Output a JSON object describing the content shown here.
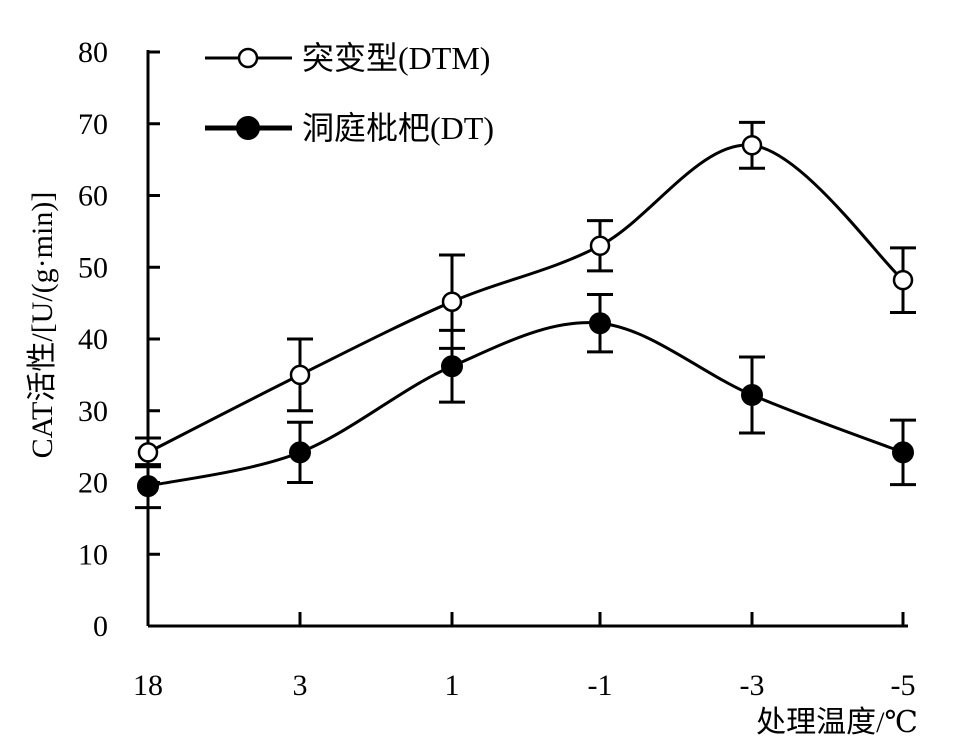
{
  "chart_data": {
    "type": "line",
    "xlabel": "处理温度/℃",
    "ylabel": "CAT活性/[U/(g·min)]",
    "categories": [
      "18",
      "3",
      "1",
      "-1",
      "-3",
      "-5"
    ],
    "ylim": [
      0,
      80
    ],
    "yticks": [
      0,
      10,
      20,
      30,
      40,
      50,
      60,
      70,
      80
    ],
    "grid": false,
    "legend_position": "top-left",
    "series": [
      {
        "name": "突变型(DTM)",
        "marker": "open-circle",
        "values": [
          24.2,
          35.0,
          45.2,
          53.0,
          67.0,
          48.2
        ],
        "errors": [
          2.0,
          5.0,
          6.5,
          3.5,
          3.2,
          4.5
        ]
      },
      {
        "name": "洞庭枇杷(DT)",
        "marker": "filled-circle",
        "values": [
          19.5,
          24.2,
          36.2,
          42.2,
          32.2,
          24.2
        ],
        "errors": [
          3.0,
          4.2,
          5.0,
          4.0,
          5.3,
          4.5
        ]
      }
    ],
    "colors": {
      "line": "#000000",
      "background": "#ffffff"
    }
  }
}
